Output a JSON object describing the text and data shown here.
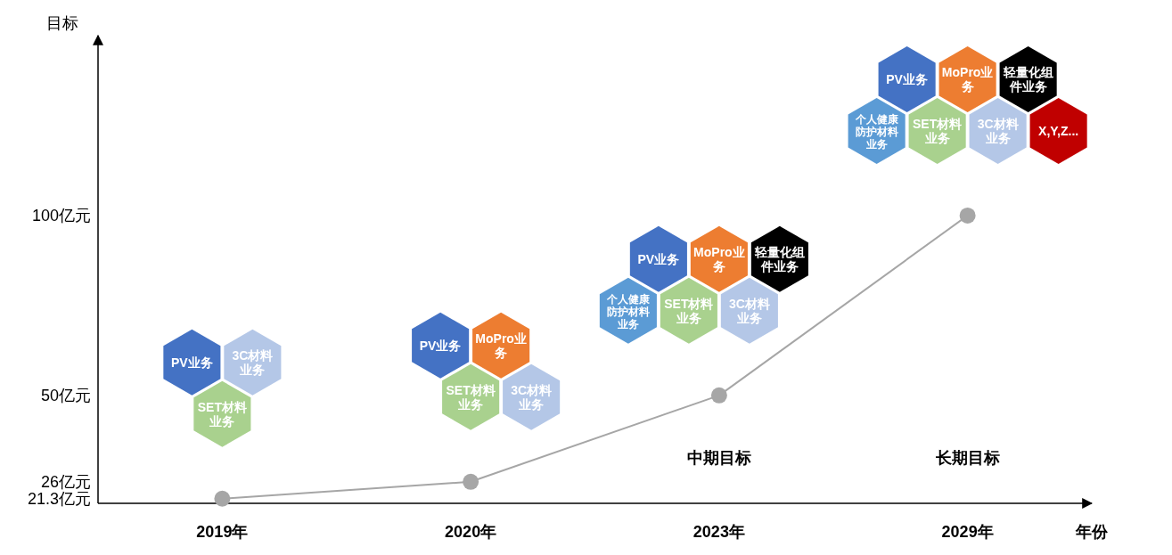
{
  "chart_data": {
    "type": "line",
    "ylabel": "目标",
    "xlabel": "年份",
    "categories": [
      "2019年",
      "2020年",
      "2023年",
      "2029年"
    ],
    "series": [
      {
        "color": "#a6a6a6",
        "values": [
          21.3,
          26,
          50,
          100
        ]
      }
    ],
    "marker": "circle",
    "ylim": [
      20,
      150
    ],
    "yticks": [
      {
        "value": 21.3,
        "label": "21.3亿元"
      },
      {
        "value": 26,
        "label": "26亿元"
      },
      {
        "value": 50,
        "label": "50亿元"
      },
      {
        "value": 100,
        "label": "100亿元"
      }
    ],
    "annotations": [
      "PV业务",
      "3C材料业务",
      "SET材料业务",
      "PV业务",
      "MoPro业务",
      "SET材料业务",
      "3C材料业务",
      "PV业务",
      "MoPro业务",
      "轻量化组件业务",
      "个人健康防护材料业务",
      "SET材料业务",
      "3C材料业务",
      "PV业务",
      "MoPro业务",
      "轻量化组件业务",
      "个人健康防护材料业务",
      "SET材料业务",
      "3C材料业务",
      "X,Y,Z...",
      "中期目标",
      "长期目标"
    ]
  }
}
